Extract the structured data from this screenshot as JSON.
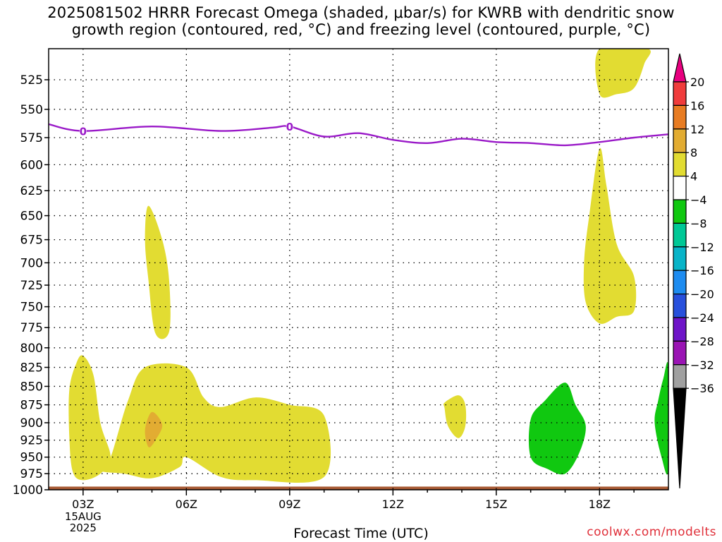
{
  "chart_data": {
    "type": "area",
    "title_line1": "2025081502 HRRR Forecast Omega (shaded, μbar/s) for KWRB with dendritic snow",
    "title_line2": "growth region (contoured, red, °C) and freezing level (contoured, purple, °C)",
    "xlabel": "Forecast Time (UTC)",
    "ylabel": "",
    "x_ticks": [
      "03Z",
      "06Z",
      "09Z",
      "12Z",
      "15Z",
      "18Z"
    ],
    "x_date_labels": [
      "15AUG",
      "2025"
    ],
    "x_range_hours": [
      2,
      20
    ],
    "y_ticks": [
      525,
      550,
      575,
      600,
      625,
      650,
      675,
      700,
      725,
      750,
      775,
      800,
      825,
      850,
      875,
      900,
      925,
      950,
      975,
      1000
    ],
    "y_range_hpa": [
      500,
      1000
    ],
    "y_scale": "log",
    "grid": "dotted",
    "colorbar": {
      "labels": [
        "20",
        "16",
        "12",
        "8",
        "4",
        "−4",
        "−8",
        "−12",
        "−16",
        "−20",
        "−24",
        "−28",
        "−32",
        "−36"
      ],
      "colors": [
        "#e8007f",
        "#f03c3c",
        "#e87c22",
        "#e2ac32",
        "#e2dc32",
        "#ffffff",
        "#10c810",
        "#00c896",
        "#08b4c8",
        "#1e8cf0",
        "#2850dc",
        "#6e14c8",
        "#9a14b4",
        "#a0a0a0",
        "#000000"
      ]
    },
    "freezing_level": {
      "color": "#9a1ac8",
      "label": "0",
      "points": [
        [
          2.0,
          563
        ],
        [
          3.0,
          569
        ],
        [
          5.0,
          565
        ],
        [
          7.0,
          569
        ],
        [
          8.5,
          566
        ],
        [
          9.0,
          565
        ],
        [
          10.0,
          574
        ],
        [
          11.0,
          571
        ],
        [
          12.0,
          577
        ],
        [
          13.0,
          580
        ],
        [
          14.0,
          576
        ],
        [
          15.0,
          579
        ],
        [
          16.0,
          580
        ],
        [
          17.0,
          582
        ],
        [
          18.0,
          579
        ],
        [
          19.0,
          575
        ],
        [
          20.0,
          572
        ]
      ]
    },
    "omega_regions": [
      {
        "level": "4 to 8",
        "color": "#e2dc32",
        "points": [
          [
            2.6,
            855
          ],
          [
            2.8,
            820
          ],
          [
            3.0,
            810
          ],
          [
            3.3,
            835
          ],
          [
            3.5,
            900
          ],
          [
            3.8,
            950
          ],
          [
            3.5,
            975
          ],
          [
            3.0,
            985
          ],
          [
            2.7,
            972
          ],
          [
            2.6,
            920
          ]
        ]
      },
      {
        "level": "4 to 8",
        "color": "#e2dc32",
        "points": [
          [
            3.8,
            950
          ],
          [
            4.3,
            870
          ],
          [
            4.8,
            825
          ],
          [
            6.0,
            825
          ],
          [
            6.5,
            865
          ],
          [
            7.0,
            878
          ],
          [
            8.0,
            865
          ],
          [
            9.0,
            875
          ],
          [
            10.0,
            890
          ],
          [
            10.0,
            980
          ],
          [
            8.0,
            985
          ],
          [
            7.0,
            980
          ],
          [
            6.0,
            950
          ],
          [
            5.8,
            965
          ],
          [
            5.0,
            982
          ],
          [
            4.2,
            975
          ],
          [
            3.5,
            970
          ]
        ]
      },
      {
        "level": "4 to 8",
        "color": "#e2dc32",
        "points": [
          [
            4.9,
            640
          ],
          [
            5.3,
            675
          ],
          [
            5.5,
            720
          ],
          [
            5.5,
            780
          ],
          [
            5.1,
            782
          ],
          [
            4.9,
            720
          ],
          [
            4.8,
            675
          ]
        ]
      },
      {
        "level": "4 to 8",
        "color": "#e2dc32",
        "points": [
          [
            13.5,
            872
          ],
          [
            13.9,
            862
          ],
          [
            14.1,
            875
          ],
          [
            14.1,
            905
          ],
          [
            13.9,
            922
          ],
          [
            13.6,
            905
          ],
          [
            13.5,
            880
          ]
        ]
      },
      {
        "level": "4 to 8",
        "color": "#e2dc32",
        "points": [
          [
            18.0,
            585
          ],
          [
            18.2,
            620
          ],
          [
            18.5,
            680
          ],
          [
            19.0,
            715
          ],
          [
            19.0,
            755
          ],
          [
            18.5,
            762
          ],
          [
            18.0,
            770
          ],
          [
            17.6,
            745
          ],
          [
            17.55,
            700
          ],
          [
            17.7,
            650
          ]
        ]
      },
      {
        "level": "4 to 8",
        "color": "#e2dc32",
        "points": [
          [
            18.0,
            500
          ],
          [
            19.4,
            500
          ],
          [
            19.3,
            512
          ],
          [
            19.0,
            532
          ],
          [
            18.5,
            537
          ],
          [
            18.0,
            537
          ]
        ]
      },
      {
        "level": "8 to 12",
        "color": "#e2ac32",
        "points": [
          [
            5.0,
            885
          ],
          [
            5.3,
            903
          ],
          [
            5.1,
            925
          ],
          [
            4.9,
            935
          ],
          [
            4.8,
            910
          ]
        ]
      },
      {
        "level": "-4 to -8",
        "color": "#10c810",
        "points": [
          [
            16.0,
            895
          ],
          [
            16.4,
            870
          ],
          [
            17.0,
            845
          ],
          [
            17.3,
            875
          ],
          [
            17.6,
            905
          ],
          [
            17.4,
            945
          ],
          [
            17.0,
            975
          ],
          [
            16.5,
            968
          ],
          [
            16.0,
            950
          ]
        ]
      },
      {
        "level": "-4 to -8",
        "color": "#10c810",
        "points": [
          [
            20.0,
            825
          ],
          [
            20.0,
            968
          ],
          [
            19.8,
            950
          ],
          [
            19.6,
            900
          ],
          [
            19.7,
            870
          ],
          [
            19.85,
            840
          ]
        ]
      }
    ],
    "ground": {
      "color": "#a85a34",
      "top_hpa": 995
    }
  },
  "credit": "coolwx.com/modelts"
}
